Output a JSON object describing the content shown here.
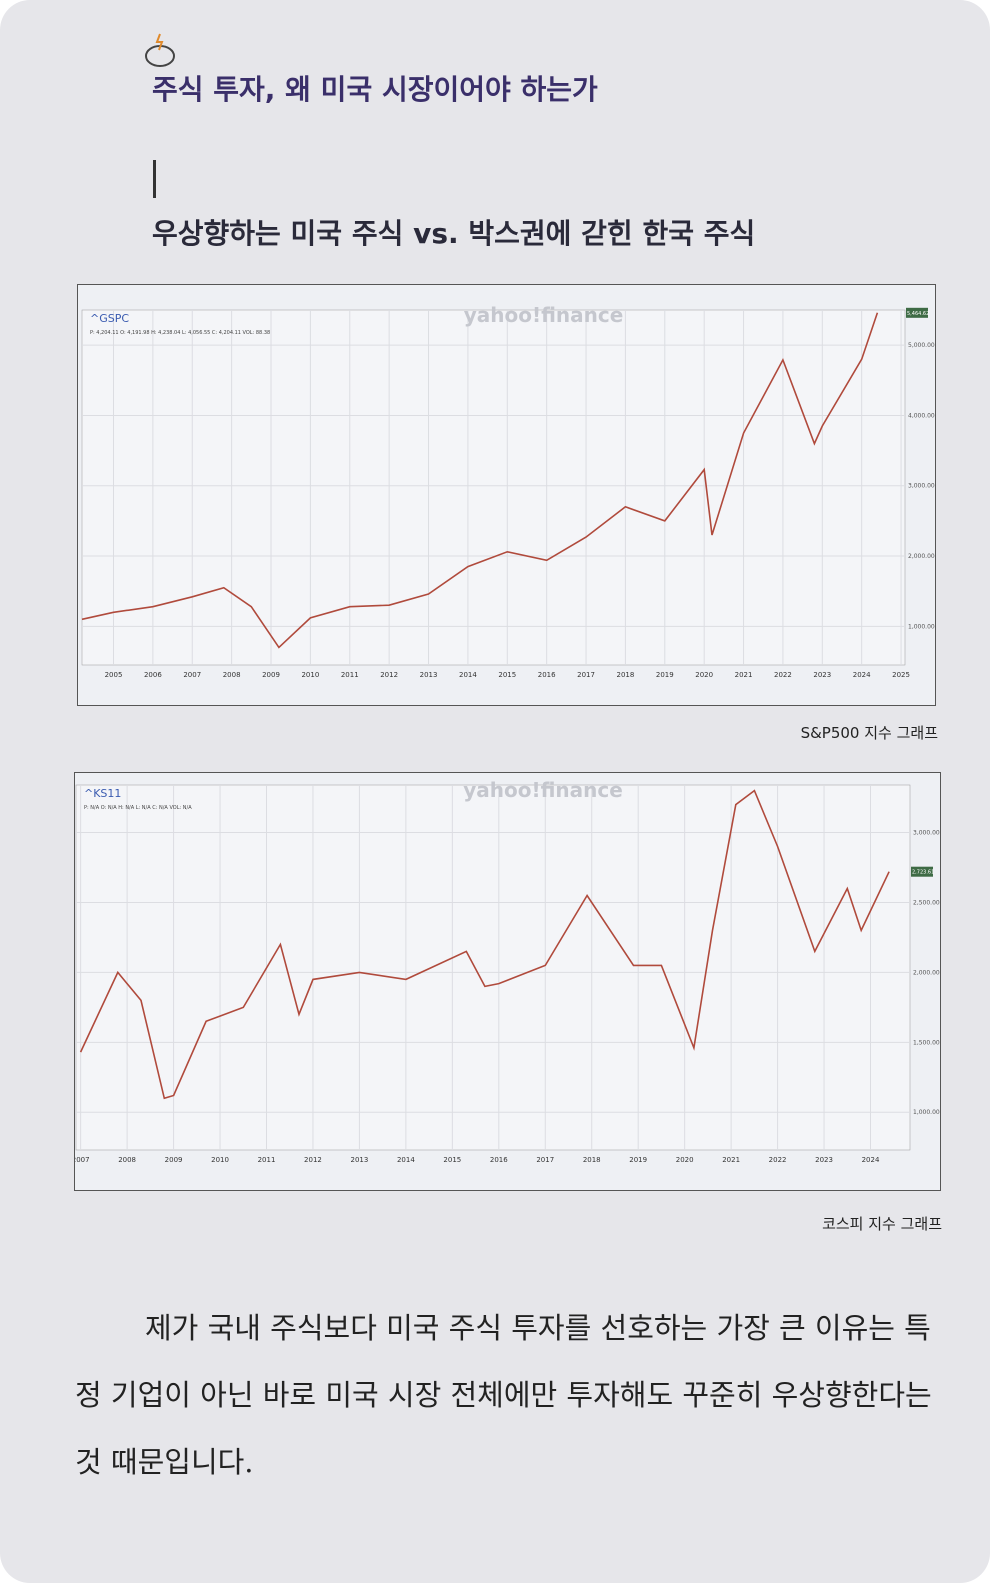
{
  "header": {
    "title": "주식 투자, 왜 미국 시장이어야 하는가",
    "subtitle": "우상향하는 미국 주식 vs. 박스권에 갇힌 한국 주식"
  },
  "charts": [
    {
      "type": "line",
      "ticker": "^GSPC",
      "watermark": "yahoo!finance",
      "ohlc": "P: 4,204.11  O: 4,191.98  H: 4,238.04  L: 4,056.55  C: 4,204.11  VOL: 88.38",
      "last_label": "5,464.62",
      "color": "#b04a3c",
      "x": [
        2004.2,
        2005,
        2006,
        2007,
        2007.8,
        2008.5,
        2009.2,
        2010,
        2011,
        2012,
        2013,
        2014,
        2015,
        2016,
        2017,
        2018,
        2019,
        2020,
        2020.2,
        2021,
        2022,
        2022.8,
        2023,
        2024,
        2024.4
      ],
      "values": [
        1100,
        1200,
        1280,
        1420,
        1550,
        1280,
        700,
        1120,
        1280,
        1300,
        1460,
        1850,
        2060,
        1940,
        2270,
        2700,
        2500,
        3230,
        2300,
        3750,
        4790,
        3600,
        3850,
        4800,
        5460
      ],
      "xlim": [
        2004.2,
        2025.1
      ],
      "ylim": [
        450,
        5500
      ],
      "xticks": [
        2005,
        2006,
        2007,
        2008,
        2009,
        2010,
        2011,
        2012,
        2013,
        2014,
        2015,
        2016,
        2017,
        2018,
        2019,
        2020,
        2021,
        2022,
        2023,
        2024,
        2025
      ],
      "yticks": [
        {
          "value": 1000,
          "label": "1,000.00"
        },
        {
          "value": 2000,
          "label": "2,000.00"
        },
        {
          "value": 3000,
          "label": "3,000.00"
        },
        {
          "value": 4000,
          "label": "4,000.00"
        },
        {
          "value": 5000,
          "label": "5,000.00"
        }
      ],
      "caption": "S&P500 지수 그래프"
    },
    {
      "type": "line",
      "ticker": "^KS11",
      "watermark": "yahoo!finance",
      "ohlc": "P: N/A  O: N/A  H: N/A  L: N/A  C: N/A  VOL: N/A",
      "last_label": "2,723.61",
      "color": "#b04a3c",
      "x": [
        2007.0,
        2007.8,
        2008.3,
        2008.8,
        2009.0,
        2009.7,
        2010.5,
        2011.3,
        2011.7,
        2012,
        2013,
        2014,
        2015.3,
        2015.7,
        2016,
        2017,
        2017.9,
        2018.9,
        2019.5,
        2020.2,
        2020.6,
        2021.1,
        2021.5,
        2022,
        2022.8,
        2023.5,
        2023.8,
        2024.4
      ],
      "values": [
        1430,
        2000,
        1800,
        1100,
        1120,
        1650,
        1750,
        2200,
        1700,
        1950,
        2000,
        1950,
        2150,
        1900,
        1920,
        2050,
        2550,
        2050,
        2050,
        1460,
        2300,
        3200,
        3300,
        2900,
        2150,
        2600,
        2300,
        2720
      ],
      "xlim": [
        2006.9,
        2024.85
      ],
      "ylim": [
        730,
        3340
      ],
      "xticks": [
        2007,
        2008,
        2009,
        2010,
        2011,
        2012,
        2013,
        2014,
        2015,
        2016,
        2017,
        2018,
        2019,
        2020,
        2021,
        2022,
        2023,
        2024
      ],
      "yticks": [
        {
          "value": 1000,
          "label": "1,000.00"
        },
        {
          "value": 1500,
          "label": "1,500.00"
        },
        {
          "value": 2000,
          "label": "2,000.00"
        },
        {
          "value": 2500,
          "label": "2,500.00"
        },
        {
          "value": 3000,
          "label": "3,000.00"
        }
      ],
      "caption": "코스피 지수 그래프"
    }
  ],
  "body": {
    "paragraph": "제가 국내 주식보다 미국 주식 투자를 선호하는 가장 큰 이유는 특정 기업이 아닌 바로 미국 시장 전체에만 투자해도 꾸준히 우상향한다는 것 때문입니다."
  }
}
